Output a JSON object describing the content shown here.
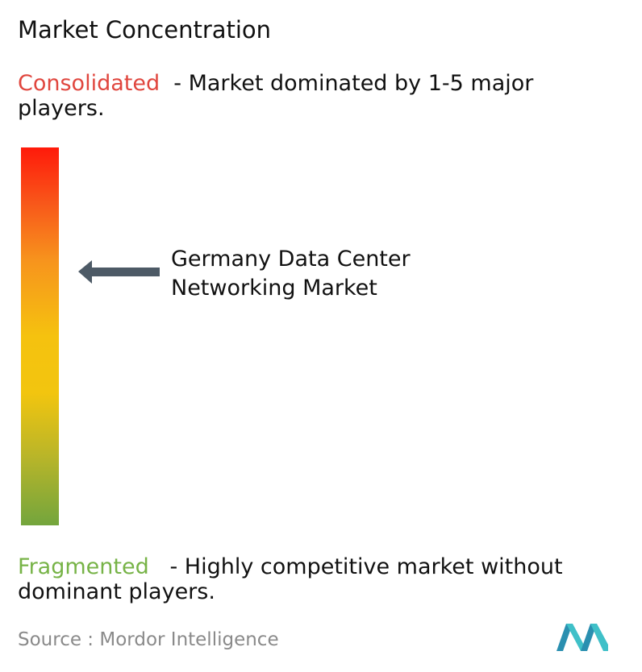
{
  "header": {
    "title": "Market Concentration"
  },
  "consolidated": {
    "label": "Consolidated",
    "description": "- Market dominated by 1-5 major players."
  },
  "market": {
    "label": "Germany Data Center Networking Market"
  },
  "fragmented": {
    "label": "Fragmented",
    "description": "- Highly competitive market without dominant players."
  },
  "source": {
    "prefix": "Source :",
    "name": "Mordor Intelligence"
  }
}
